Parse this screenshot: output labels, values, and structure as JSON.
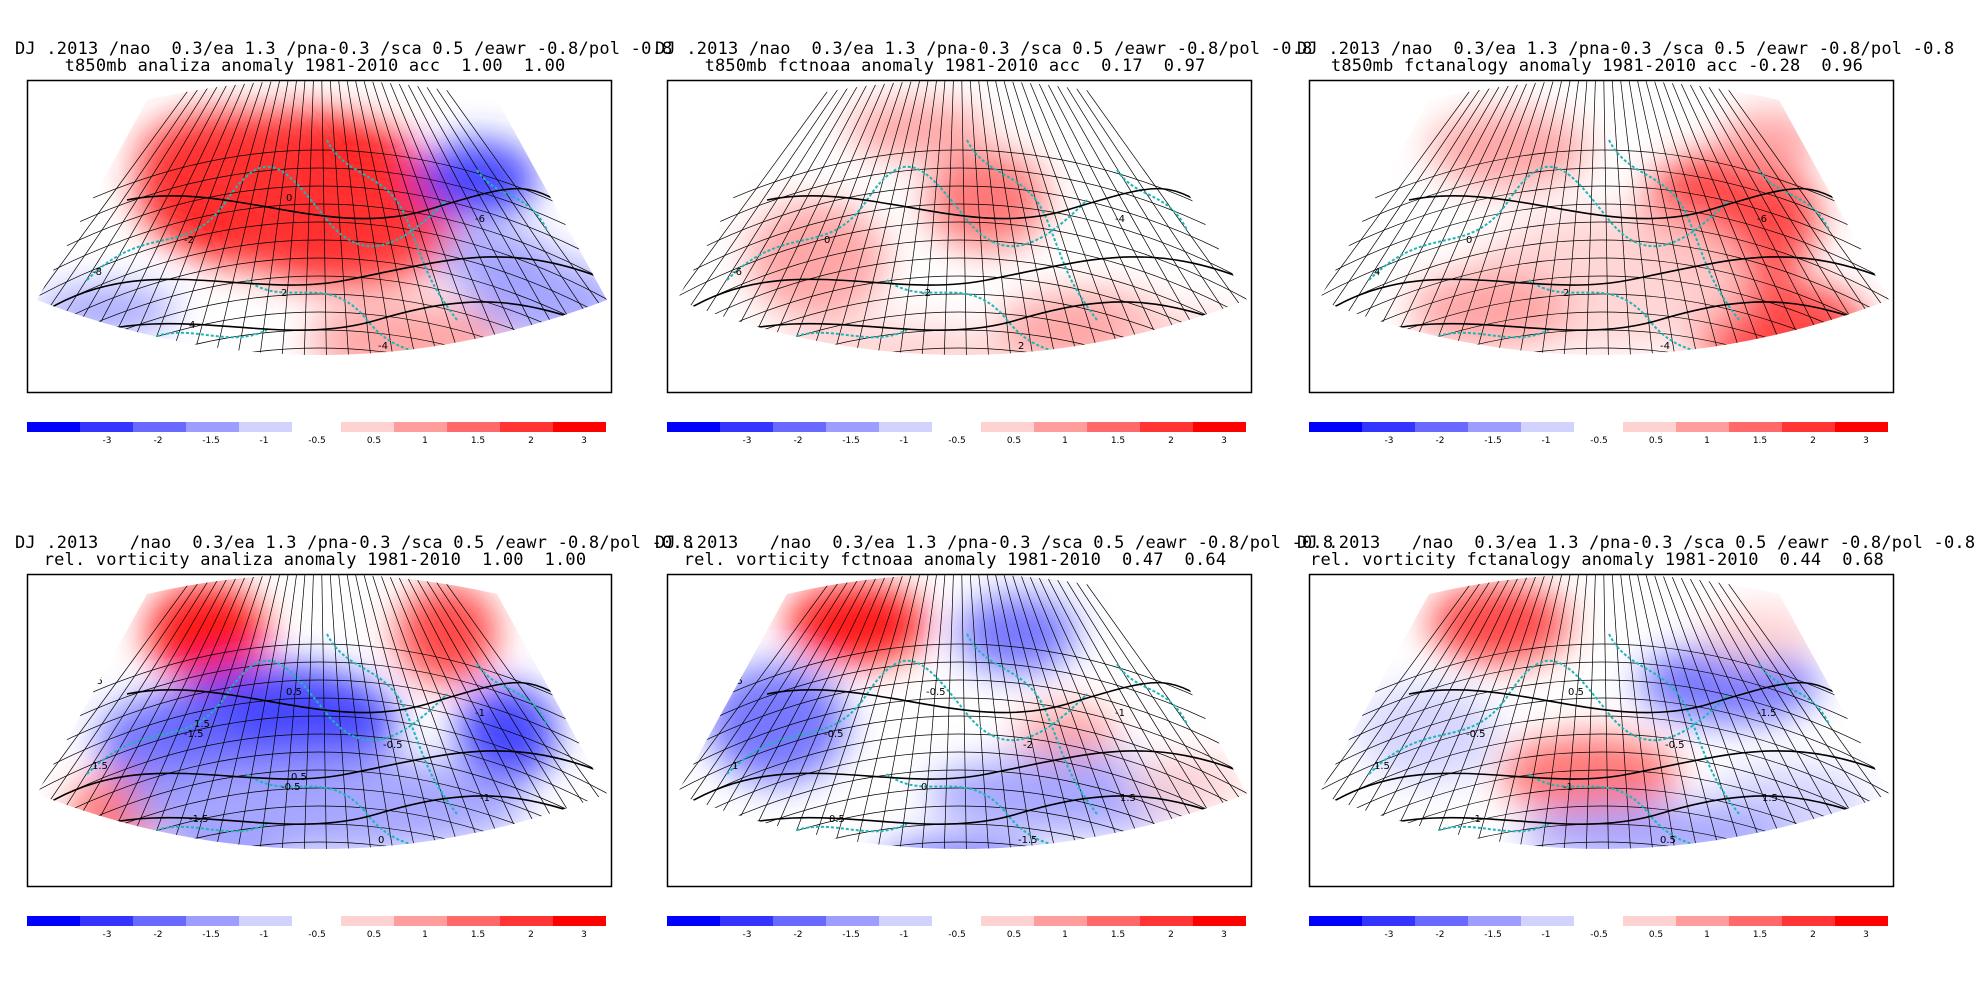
{
  "panels": [
    {
      "title_line1": "DJ .2013 /nao  0.3/ea 1.3 /pna-0.3 /sca 0.5 /eawr -0.8/pol -0.8",
      "title_line2": "t850mb analiza anomaly 1981-2010 acc  1.00  1.00",
      "contour_labels": [
        "2",
        "-2",
        "2",
        "-4",
        "-6",
        "-8",
        "4",
        "0"
      ]
    },
    {
      "title_line1": "DJ .2013 /nao  0.3/ea 1.3 /pna-0.3 /sca 0.5 /eawr -0.8/pol -0.8",
      "title_line2": "t850mb fctnoaa anomaly 1981-2010 acc  0.17  0.97",
      "contour_labels": [
        "2",
        "0",
        "-2",
        "2",
        "-4",
        "-6"
      ]
    },
    {
      "title_line1": "DJ .2013 /nao  0.3/ea 1.3 /pna-0.3 /sca 0.5 /eawr -0.8/pol -0.8",
      "title_line2": "t850mb fctanalogy anomaly 1981-2010 acc -0.28  0.96",
      "contour_labels": [
        "-2",
        "0",
        "2",
        "-4",
        "-6",
        "4"
      ]
    },
    {
      "title_line1": "DJ .2013   /nao  0.3/ea 1.3 /pna-0.3 /sca 0.5 /eawr -0.8/pol -0.8",
      "title_line2": "rel. vorticity analiza anomaly 1981-2010  1.00  1.00",
      "contour_labels": [
        "0.5",
        "-1.5",
        "-0.5",
        "0",
        "-1",
        "1.5",
        "-1.5",
        "0.5",
        "-0.5",
        "-1",
        "0",
        "1.5",
        "0.5"
      ]
    },
    {
      "title_line1": "DJ .2013   /nao  0.3/ea 1.3 /pna-0.3 /sca 0.5 /eawr -0.8/pol -0.8",
      "title_line2": "rel. vorticity fctnoaa anomaly 1981-2010  0.47  0.64",
      "contour_labels": [
        "0.5",
        "-0.5",
        "0",
        "-1.5",
        "-1",
        "1",
        "0.5",
        "-0.5",
        "-2",
        "1.5"
      ]
    },
    {
      "title_line1": "DJ .2013   /nao  0.3/ea 1.3 /pna-0.3 /sca 0.5 /eawr -0.8/pol -0.8",
      "title_line2": "rel. vorticity fctanalogy anomaly 1981-2010  0.44  0.68",
      "contour_labels": [
        "0",
        "-0.5",
        "-1",
        "0.5",
        "-1.5",
        "1.5",
        "-1",
        "0.5",
        "-0.5",
        "1.5"
      ]
    }
  ],
  "colorbar": {
    "labels": [
      "-3",
      "-2",
      "-1.5",
      "-1",
      "-0.5",
      "0.5",
      "1",
      "1.5",
      "2",
      "3"
    ],
    "colors": [
      "#0000ff",
      "#3434ff",
      "#6969ff",
      "#9d9dff",
      "#d2d2ff",
      "#ffd2d2",
      "#ff9d9d",
      "#ff6969",
      "#ff3434",
      "#ff0000"
    ]
  },
  "colors": {
    "coast": "#1fb5b5",
    "contour": "#000000",
    "positive": "#ff0000",
    "negative": "#0000ff"
  }
}
